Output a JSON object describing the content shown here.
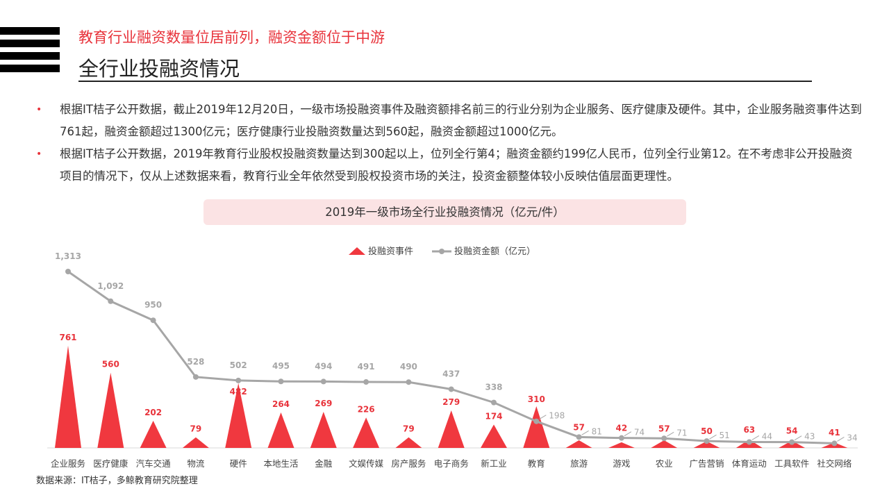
{
  "header": {
    "subtitle": "教育行业融资数量位居前列，融资金额位于中游",
    "title": "全行业投融资情况"
  },
  "bullets": [
    "根据IT桔子公开数据，截止2019年12月20日，一级市场投融资事件及融资额排名前三的行业分别为企业服务、医疗健康及硬件。其中，企业服务融资事件达到761起，融资金额超过1300亿元；医疗健康行业投融资数量达到560起，融资金额超过1000亿元。",
    "根据IT桔子公开数据，2019年教育行业股权投融资数量达到300起以上，位列全行第4；融资金额约199亿人民币，位列全行业第12。在不考虑非公开投融资项目的情况下，仅从上述数据来看，教育行业全年依然受到股权投资市场的关注，投资金额整体较小反映估值层面更理性。"
  ],
  "source": "数据来源：IT桔子，多鲸教育研究院整理",
  "chart_data": {
    "type": "bar+line",
    "title": "2019年一级市场全行业投融资情况（亿元/件）",
    "categories": [
      "企业服务",
      "医疗健康",
      "汽车交通",
      "物流",
      "硬件",
      "本地生活",
      "金融",
      "文娱传媒",
      "房产服务",
      "电子商务",
      "新工业",
      "教育",
      "旅游",
      "游戏",
      "农业",
      "广告营销",
      "体育运动",
      "工具软件",
      "社交网络"
    ],
    "series": [
      {
        "name": "投融资事件",
        "mark": "triangle",
        "color": "#f0383f",
        "values": [
          761,
          560,
          202,
          79,
          482,
          264,
          269,
          226,
          79,
          279,
          174,
          310,
          57,
          42,
          57,
          50,
          63,
          54,
          41
        ]
      },
      {
        "name": "投融资金额（亿元）",
        "mark": "line",
        "color": "#a6a6a6",
        "values": [
          1313,
          1092,
          950,
          528,
          502,
          495,
          494,
          491,
          490,
          437,
          338,
          198,
          81,
          74,
          71,
          51,
          44,
          43,
          34
        ]
      }
    ],
    "ylim": [
      0,
      1313
    ],
    "legend": "top-center",
    "grid": false
  }
}
